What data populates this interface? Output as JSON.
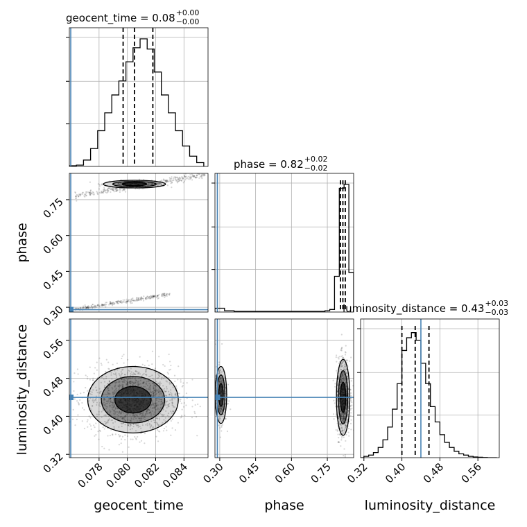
{
  "chart_data": {
    "type": "corner",
    "grid": true,
    "truth_color": "#4682b4",
    "parameters": [
      {
        "name": "geocent_time",
        "label": "geocent_time",
        "title_main": "geocent_time = 0.08",
        "title_plus": "+0.00",
        "title_minus": "−0.00",
        "range": [
          0.0759,
          0.0857
        ],
        "ticks": [
          0.078,
          0.08,
          0.082,
          0.084
        ],
        "tick_labels": [
          "0.078",
          "0.080",
          "0.082",
          "0.084"
        ],
        "quantiles": [
          0.0797,
          0.0805,
          0.0818
        ],
        "truth": 0.076
      },
      {
        "name": "phase",
        "label": "phase",
        "title_main": "phase = 0.82",
        "title_plus": "+0.02",
        "title_minus": "−0.02",
        "range": [
          0.28,
          0.86
        ],
        "ticks": [
          0.3,
          0.45,
          0.6,
          0.75
        ],
        "tick_labels": [
          "0.30",
          "0.45",
          "0.60",
          "0.75"
        ],
        "quantiles": [
          0.805,
          0.815,
          0.825
        ],
        "truth": 0.29
      },
      {
        "name": "luminosity_distance",
        "label": "luminosity_distance",
        "title_main": "luminosity_distance = 0.43",
        "title_plus": "+0.03",
        "title_minus": "−0.03",
        "range": [
          0.313,
          0.605
        ],
        "ticks": [
          0.32,
          0.4,
          0.48,
          0.56
        ],
        "tick_labels": [
          "0.32",
          "0.40",
          "0.48",
          "0.56"
        ],
        "quantiles": [
          0.4,
          0.428,
          0.457
        ],
        "truth": 0.44
      }
    ],
    "histograms": [
      {
        "param": "geocent_time",
        "bins": [
          0.0759,
          0.0764,
          0.0769,
          0.0774,
          0.0779,
          0.0784,
          0.0789,
          0.0794,
          0.0799,
          0.0804,
          0.0809,
          0.0814,
          0.0819,
          0.0824,
          0.0829,
          0.0834,
          0.0839,
          0.0844,
          0.0849,
          0.0854
        ],
        "counts": [
          0.005,
          0.01,
          0.05,
          0.14,
          0.28,
          0.42,
          0.56,
          0.67,
          0.82,
          0.93,
          1.0,
          0.92,
          0.74,
          0.56,
          0.42,
          0.28,
          0.16,
          0.08,
          0.03
        ]
      },
      {
        "param": "phase",
        "bins": [
          0.28,
          0.3,
          0.32,
          0.34,
          0.36,
          0.38,
          0.4,
          0.42,
          0.44,
          0.46,
          0.48,
          0.5,
          0.52,
          0.54,
          0.56,
          0.58,
          0.6,
          0.62,
          0.64,
          0.66,
          0.68,
          0.7,
          0.72,
          0.74,
          0.76,
          0.78,
          0.8,
          0.82,
          0.84,
          0.86
        ],
        "counts": [
          0.03,
          0.03,
          0.01,
          0.01,
          0.005,
          0.005,
          0.005,
          0.005,
          0.005,
          0.005,
          0.005,
          0.005,
          0.005,
          0.005,
          0.005,
          0.005,
          0.005,
          0.005,
          0.005,
          0.005,
          0.005,
          0.005,
          0.005,
          0.01,
          0.02,
          0.28,
          0.97,
          1.0,
          0.31
        ]
      },
      {
        "param": "luminosity_distance",
        "bins": [
          0.31,
          0.32,
          0.33,
          0.34,
          0.35,
          0.36,
          0.37,
          0.38,
          0.39,
          0.4,
          0.41,
          0.42,
          0.43,
          0.44,
          0.45,
          0.46,
          0.47,
          0.48,
          0.49,
          0.5,
          0.51,
          0.52,
          0.53,
          0.54,
          0.55,
          0.56,
          0.57,
          0.58,
          0.59,
          0.6
        ],
        "counts": [
          0.0,
          0.01,
          0.02,
          0.04,
          0.08,
          0.14,
          0.24,
          0.38,
          0.58,
          0.84,
          0.94,
          0.98,
          0.92,
          0.74,
          0.58,
          0.4,
          0.28,
          0.18,
          0.12,
          0.08,
          0.05,
          0.03,
          0.02,
          0.01,
          0.005,
          0.003,
          0.001,
          0.0,
          0.0
        ]
      }
    ],
    "pairs": [
      {
        "x": "geocent_time",
        "y": "phase",
        "clusters": [
          {
            "kind": "line",
            "x0": 0.0763,
            "y0": 0.765,
            "x1": 0.0855,
            "y1": 0.855,
            "spread": 0.006,
            "n": 320
          },
          {
            "kind": "line",
            "x0": 0.0763,
            "y0": 0.29,
            "x1": 0.083,
            "y1": 0.355,
            "spread": 0.004,
            "n": 260
          },
          {
            "kind": "blob",
            "cx": 0.0805,
            "cy": 0.815,
            "sx": 0.0011,
            "sy": 0.008,
            "n": 220
          }
        ]
      },
      {
        "x": "geocent_time",
        "y": "luminosity_distance",
        "clusters": [
          {
            "kind": "blob",
            "cx": 0.0804,
            "cy": 0.435,
            "sx": 0.0016,
            "sy": 0.035,
            "n": 1400
          }
        ]
      },
      {
        "x": "phase",
        "y": "luminosity_distance",
        "clusters": [
          {
            "kind": "blob",
            "cx": 0.305,
            "cy": 0.445,
            "sx": 0.012,
            "sy": 0.03,
            "n": 250
          },
          {
            "kind": "blob",
            "cx": 0.816,
            "cy": 0.44,
            "sx": 0.014,
            "sy": 0.04,
            "n": 800
          }
        ]
      }
    ]
  }
}
